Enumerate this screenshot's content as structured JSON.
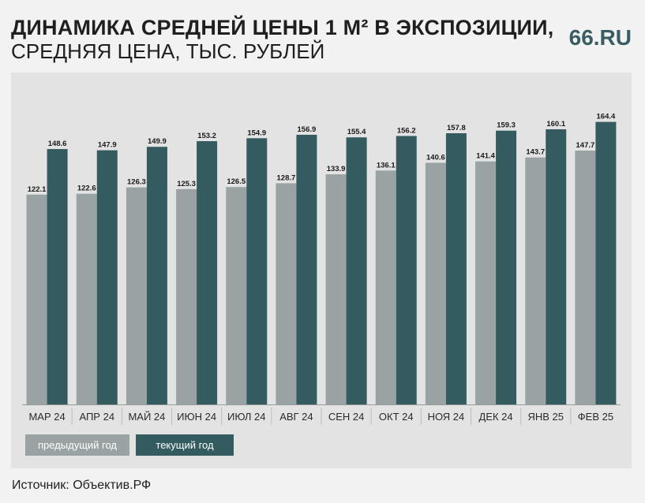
{
  "header": {
    "title_line1": "ДИНАМИКА СРЕДНЕЙ ЦЕНЫ 1 М² В ЭКСПОЗИЦИИ,",
    "title_line2": "СРЕДНЯЯ ЦЕНА, ТЫС. РУБЛЕЙ",
    "logo": "66.RU"
  },
  "legend": {
    "previous": "предыдущий год",
    "current": "текущий год"
  },
  "source": "Источник: Объектив.РФ",
  "colors": {
    "previous": "#99a3a3",
    "current": "#345c60",
    "label": "#1a1a1a",
    "axis_text": "#2a2a2a"
  },
  "chart_data": {
    "type": "bar",
    "title": "ДИНАМИКА СРЕДНЕЙ ЦЕНЫ 1 М² В ЭКСПОЗИЦИИ, СРЕДНЯЯ ЦЕНА, ТЫС. РУБЛЕЙ",
    "categories": [
      "МАР 24",
      "АПР 24",
      "МАЙ 24",
      "ИЮН 24",
      "ИЮЛ 24",
      "АВГ 24",
      "СЕН 24",
      "ОКТ 24",
      "НОЯ 24",
      "ДЕК 24",
      "ЯНВ 25",
      "ФЕВ 25"
    ],
    "series": [
      {
        "name": "предыдущий год",
        "values": [
          122.1,
          122.6,
          126.3,
          125.3,
          126.5,
          128.7,
          133.9,
          136.1,
          140.6,
          141.4,
          143.7,
          147.7
        ]
      },
      {
        "name": "текущий год",
        "values": [
          148.6,
          147.9,
          149.9,
          153.2,
          154.9,
          156.9,
          155.4,
          156.2,
          157.8,
          159.3,
          160.1,
          164.4
        ]
      }
    ],
    "xlabel": "",
    "ylabel": "тыс. рублей",
    "ylim": [
      0,
      170
    ],
    "grid": false,
    "legend_position": "bottom-left"
  }
}
